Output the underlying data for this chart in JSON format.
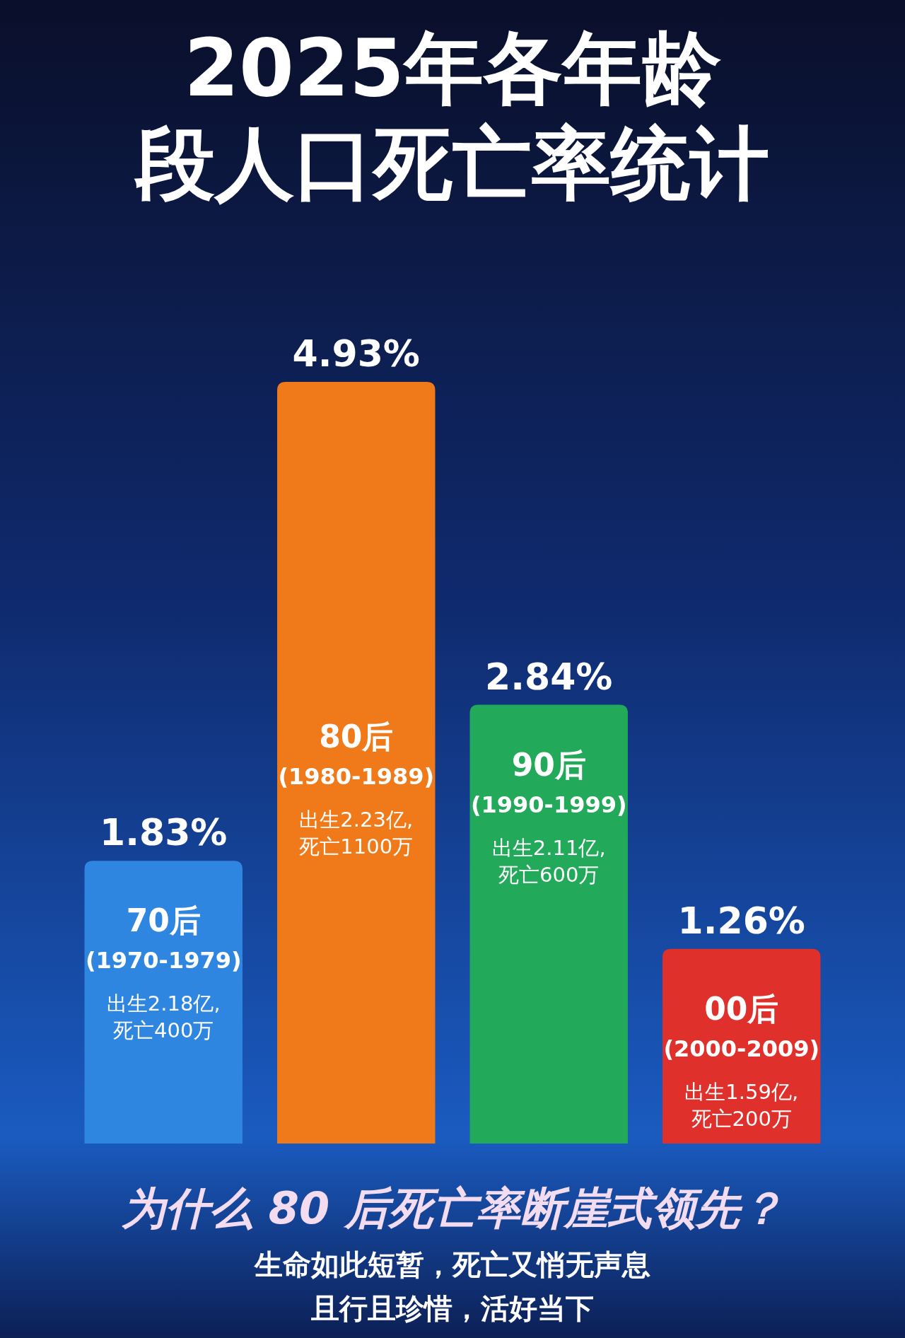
{
  "chart_data": {
    "type": "bar",
    "title": "2025年各年龄段人口死亡率统计",
    "categories": [
      "70后",
      "80后",
      "90后",
      "00后"
    ],
    "values": [
      1.83,
      4.93,
      2.84,
      1.26
    ],
    "value_labels": [
      "1.83%",
      "4.93%",
      "2.84%",
      "1.26%"
    ],
    "colors": [
      "#2f86e0",
      "#f07a1a",
      "#22a95a",
      "#e0302c"
    ],
    "annotations": [
      "(1970-1979)",
      "出生2.18亿,",
      "死亡400万",
      "(1980-1989)",
      "出生2.23亿,",
      "死亡1100万",
      "(1990-1999)",
      "出生2.11亿,",
      "死亡600万",
      "(2000-2009)",
      "出生1.59亿,",
      "死亡200万",
      "为什么 80 后死亡率断崖式领先？",
      "生命如此短暂，死亡又悄无声息",
      "且行且珍惜，活好当下"
    ]
  }
}
